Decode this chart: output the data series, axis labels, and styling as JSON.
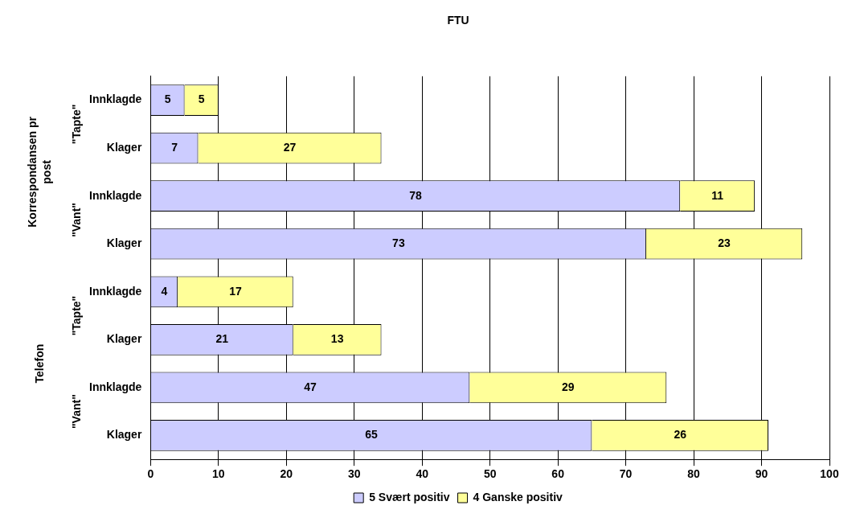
{
  "chart_data": {
    "type": "bar",
    "title": "FTU",
    "orientation": "horizontal",
    "stacked": true,
    "categories": [
      "Innklagde",
      "Klager",
      "Innklagde",
      "Klager",
      "Innklagde",
      "Klager",
      "Innklagde",
      "Klager"
    ],
    "series": [
      {
        "name": "5 Svært positiv",
        "color": "#ccccff",
        "values": [
          5,
          7,
          78,
          73,
          4,
          21,
          47,
          65
        ]
      },
      {
        "name": "4 Ganske positiv",
        "color": "#ffff99",
        "values": [
          5,
          27,
          11,
          23,
          17,
          13,
          29,
          26
        ]
      }
    ],
    "xlim": [
      0,
      100
    ],
    "xticks": [
      0,
      10,
      20,
      30,
      40,
      50,
      60,
      70,
      80,
      90,
      100
    ],
    "grid": "x",
    "legend": "bottom",
    "data_labels": true,
    "annotations": [
      "\"Tapte\"",
      "\"Vant\"",
      "\"Tapte\"",
      "\"Vant\"",
      "Korrespondansen pr post",
      "Telefon"
    ]
  }
}
